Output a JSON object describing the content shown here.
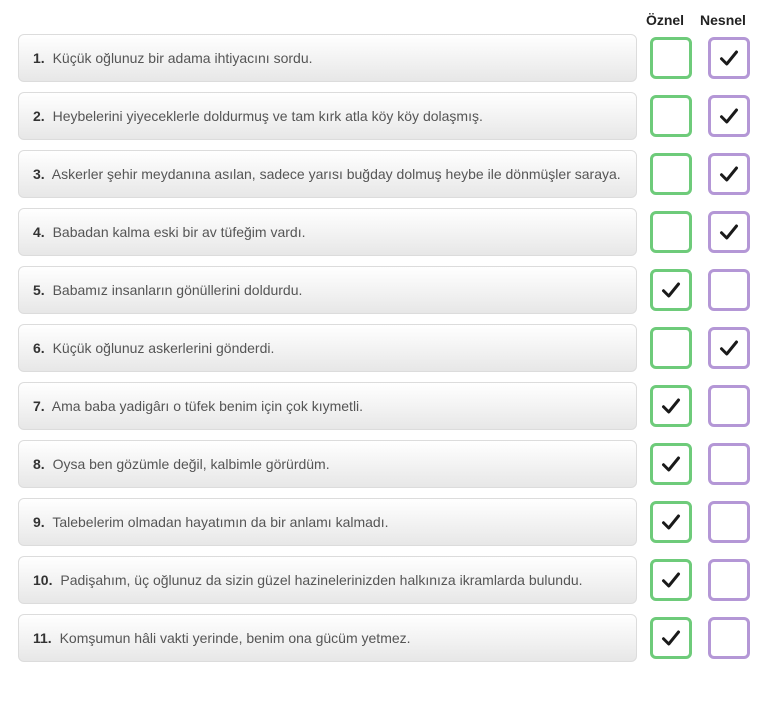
{
  "headers": {
    "oznel": "Öznel",
    "nesnel": "Nesnel"
  },
  "colors": {
    "oznel_border": "#6ecb7a",
    "nesnel_border": "#b497d6",
    "checkmark": "#1a1a1a",
    "box_bg_top": "#ffffff",
    "box_bg_bottom": "#e7e7e7",
    "box_border": "#dcdcdc",
    "text_color": "#555555",
    "num_color": "#333333"
  },
  "typography": {
    "font_family": "Arial, Helvetica, sans-serif",
    "sentence_fontsize": 14,
    "header_fontsize": 14,
    "header_weight": "bold"
  },
  "rows": [
    {
      "num": "1.",
      "text": "Küçük oğlunuz bir adama ihtiyacını sordu.",
      "oznel": false,
      "nesnel": true
    },
    {
      "num": "2.",
      "text": "Heybelerini yiyeceklerle doldurmuş ve tam kırk atla köy köy dolaşmış.",
      "oznel": false,
      "nesnel": true
    },
    {
      "num": "3.",
      "text": "Askerler şehir meydanına asılan, sadece yarısı buğday dolmuş heybe ile dönmüşler saraya.",
      "oznel": false,
      "nesnel": true
    },
    {
      "num": "4.",
      "text": "Babadan kalma eski bir av tüfeğim vardı.",
      "oznel": false,
      "nesnel": true
    },
    {
      "num": "5.",
      "text": "Babamız insanların gönüllerini doldurdu.",
      "oznel": true,
      "nesnel": false
    },
    {
      "num": "6.",
      "text": "Küçük oğlunuz askerlerini gönderdi.",
      "oznel": false,
      "nesnel": true
    },
    {
      "num": "7.",
      "text": "Ama baba yadigârı o tüfek benim için çok kıymetli.",
      "oznel": true,
      "nesnel": false
    },
    {
      "num": "8.",
      "text": "Oysa ben gözümle değil, kalbimle görürdüm.",
      "oznel": true,
      "nesnel": false
    },
    {
      "num": "9.",
      "text": "Talebelerim olmadan hayatımın da bir anlamı kalmadı.",
      "oznel": true,
      "nesnel": false
    },
    {
      "num": "10.",
      "text": "Padişahım, üç oğlunuz da sizin güzel hazinelerinizden halkınıza ikramlarda bulundu.",
      "oznel": true,
      "nesnel": false
    },
    {
      "num": "11.",
      "text": "Komşumun hâli vakti yerinde, benim ona gücüm yetmez.",
      "oznel": true,
      "nesnel": false
    }
  ]
}
